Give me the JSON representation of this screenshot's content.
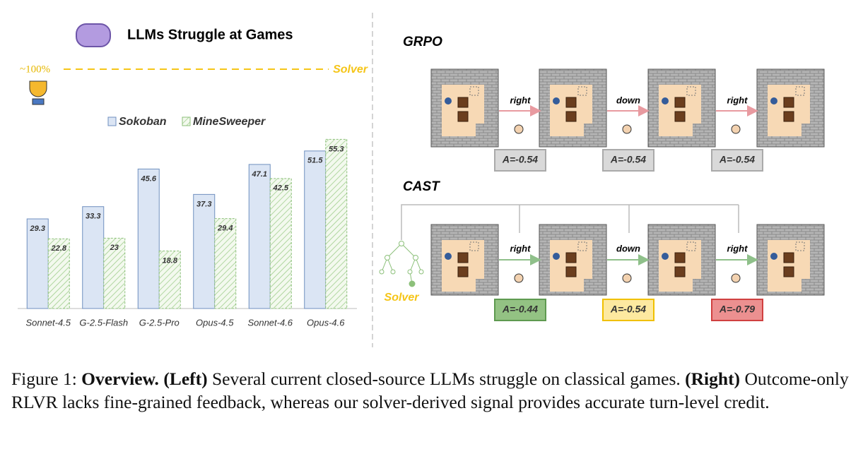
{
  "chart_data": {
    "type": "bar",
    "title": "LLMs Struggle at Games",
    "reference_label": "~100%",
    "reference_name": "Solver",
    "categories": [
      "Sonnet-4.5",
      "G-2.5-Flash",
      "G-2.5-Pro",
      "Opus-4.5",
      "Sonnet-4.6",
      "Opus-4.6"
    ],
    "series": [
      {
        "name": "Sokoban",
        "color": "#dbe5f4",
        "values": [
          29.3,
          33.3,
          45.6,
          37.3,
          47.1,
          51.5
        ]
      },
      {
        "name": "MineSweeper",
        "color": "#8cc07a",
        "values": [
          22.8,
          23,
          18.8,
          29.4,
          42.5,
          55.3
        ]
      }
    ],
    "ylim": [
      0,
      60
    ]
  },
  "diagram": {
    "grpo": {
      "label": "GRPO",
      "actions": [
        "right",
        "down",
        "right"
      ],
      "advantages": [
        "A=-0.54",
        "A=-0.54",
        "A=-0.54"
      ]
    },
    "cast": {
      "label": "CAST",
      "solver": "Solver",
      "actions": [
        "right",
        "down",
        "right"
      ],
      "advantages": [
        "A=-0.44",
        "A=-0.54",
        "A=-0.79"
      ]
    }
  },
  "caption": {
    "lead": "Figure 1:",
    "bold": "Overview.",
    "left_tag": "(Left)",
    "left_text": "Several current closed-source LLMs struggle on classical games.",
    "right_tag": "(Right)",
    "right_text": "Outcome-only RLVR lacks fine-grained feedback, whereas our solver-derived signal provides accurate turn-level credit."
  }
}
